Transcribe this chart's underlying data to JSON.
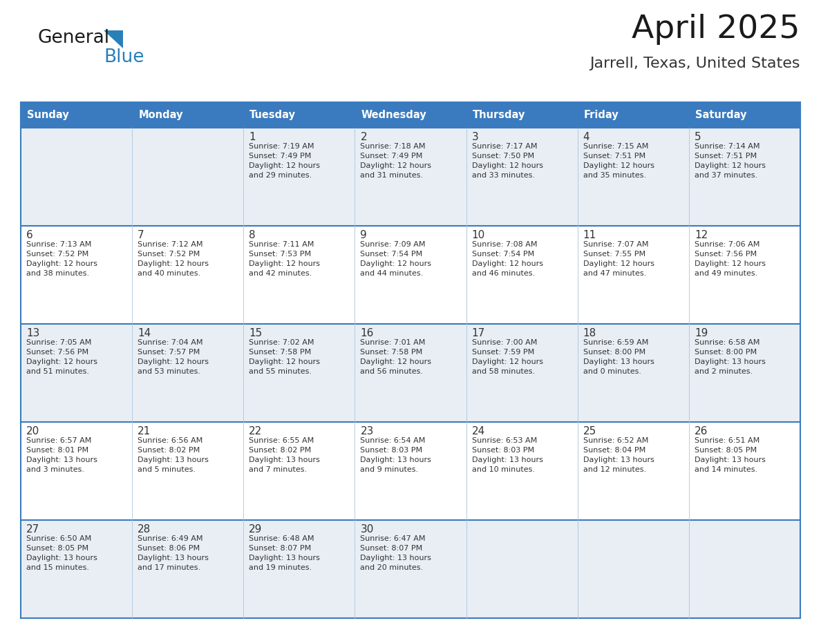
{
  "title": "April 2025",
  "subtitle": "Jarrell, Texas, United States",
  "days_of_week": [
    "Sunday",
    "Monday",
    "Tuesday",
    "Wednesday",
    "Thursday",
    "Friday",
    "Saturday"
  ],
  "header_bg_color": "#3a7bbf",
  "header_text_color": "#ffffff",
  "row_bg_light": "#e8eef4",
  "row_bg_white": "#ffffff",
  "border_color": "#3a7bbf",
  "sep_color": "#aac4de",
  "text_color": "#333333",
  "calendar_data": [
    [
      {
        "day": "",
        "sunrise": "",
        "sunset": "",
        "daylight": ""
      },
      {
        "day": "",
        "sunrise": "",
        "sunset": "",
        "daylight": ""
      },
      {
        "day": "1",
        "sunrise": "Sunrise: 7:19 AM",
        "sunset": "Sunset: 7:49 PM",
        "daylight": "Daylight: 12 hours\nand 29 minutes."
      },
      {
        "day": "2",
        "sunrise": "Sunrise: 7:18 AM",
        "sunset": "Sunset: 7:49 PM",
        "daylight": "Daylight: 12 hours\nand 31 minutes."
      },
      {
        "day": "3",
        "sunrise": "Sunrise: 7:17 AM",
        "sunset": "Sunset: 7:50 PM",
        "daylight": "Daylight: 12 hours\nand 33 minutes."
      },
      {
        "day": "4",
        "sunrise": "Sunrise: 7:15 AM",
        "sunset": "Sunset: 7:51 PM",
        "daylight": "Daylight: 12 hours\nand 35 minutes."
      },
      {
        "day": "5",
        "sunrise": "Sunrise: 7:14 AM",
        "sunset": "Sunset: 7:51 PM",
        "daylight": "Daylight: 12 hours\nand 37 minutes."
      }
    ],
    [
      {
        "day": "6",
        "sunrise": "Sunrise: 7:13 AM",
        "sunset": "Sunset: 7:52 PM",
        "daylight": "Daylight: 12 hours\nand 38 minutes."
      },
      {
        "day": "7",
        "sunrise": "Sunrise: 7:12 AM",
        "sunset": "Sunset: 7:52 PM",
        "daylight": "Daylight: 12 hours\nand 40 minutes."
      },
      {
        "day": "8",
        "sunrise": "Sunrise: 7:11 AM",
        "sunset": "Sunset: 7:53 PM",
        "daylight": "Daylight: 12 hours\nand 42 minutes."
      },
      {
        "day": "9",
        "sunrise": "Sunrise: 7:09 AM",
        "sunset": "Sunset: 7:54 PM",
        "daylight": "Daylight: 12 hours\nand 44 minutes."
      },
      {
        "day": "10",
        "sunrise": "Sunrise: 7:08 AM",
        "sunset": "Sunset: 7:54 PM",
        "daylight": "Daylight: 12 hours\nand 46 minutes."
      },
      {
        "day": "11",
        "sunrise": "Sunrise: 7:07 AM",
        "sunset": "Sunset: 7:55 PM",
        "daylight": "Daylight: 12 hours\nand 47 minutes."
      },
      {
        "day": "12",
        "sunrise": "Sunrise: 7:06 AM",
        "sunset": "Sunset: 7:56 PM",
        "daylight": "Daylight: 12 hours\nand 49 minutes."
      }
    ],
    [
      {
        "day": "13",
        "sunrise": "Sunrise: 7:05 AM",
        "sunset": "Sunset: 7:56 PM",
        "daylight": "Daylight: 12 hours\nand 51 minutes."
      },
      {
        "day": "14",
        "sunrise": "Sunrise: 7:04 AM",
        "sunset": "Sunset: 7:57 PM",
        "daylight": "Daylight: 12 hours\nand 53 minutes."
      },
      {
        "day": "15",
        "sunrise": "Sunrise: 7:02 AM",
        "sunset": "Sunset: 7:58 PM",
        "daylight": "Daylight: 12 hours\nand 55 minutes."
      },
      {
        "day": "16",
        "sunrise": "Sunrise: 7:01 AM",
        "sunset": "Sunset: 7:58 PM",
        "daylight": "Daylight: 12 hours\nand 56 minutes."
      },
      {
        "day": "17",
        "sunrise": "Sunrise: 7:00 AM",
        "sunset": "Sunset: 7:59 PM",
        "daylight": "Daylight: 12 hours\nand 58 minutes."
      },
      {
        "day": "18",
        "sunrise": "Sunrise: 6:59 AM",
        "sunset": "Sunset: 8:00 PM",
        "daylight": "Daylight: 13 hours\nand 0 minutes."
      },
      {
        "day": "19",
        "sunrise": "Sunrise: 6:58 AM",
        "sunset": "Sunset: 8:00 PM",
        "daylight": "Daylight: 13 hours\nand 2 minutes."
      }
    ],
    [
      {
        "day": "20",
        "sunrise": "Sunrise: 6:57 AM",
        "sunset": "Sunset: 8:01 PM",
        "daylight": "Daylight: 13 hours\nand 3 minutes."
      },
      {
        "day": "21",
        "sunrise": "Sunrise: 6:56 AM",
        "sunset": "Sunset: 8:02 PM",
        "daylight": "Daylight: 13 hours\nand 5 minutes."
      },
      {
        "day": "22",
        "sunrise": "Sunrise: 6:55 AM",
        "sunset": "Sunset: 8:02 PM",
        "daylight": "Daylight: 13 hours\nand 7 minutes."
      },
      {
        "day": "23",
        "sunrise": "Sunrise: 6:54 AM",
        "sunset": "Sunset: 8:03 PM",
        "daylight": "Daylight: 13 hours\nand 9 minutes."
      },
      {
        "day": "24",
        "sunrise": "Sunrise: 6:53 AM",
        "sunset": "Sunset: 8:03 PM",
        "daylight": "Daylight: 13 hours\nand 10 minutes."
      },
      {
        "day": "25",
        "sunrise": "Sunrise: 6:52 AM",
        "sunset": "Sunset: 8:04 PM",
        "daylight": "Daylight: 13 hours\nand 12 minutes."
      },
      {
        "day": "26",
        "sunrise": "Sunrise: 6:51 AM",
        "sunset": "Sunset: 8:05 PM",
        "daylight": "Daylight: 13 hours\nand 14 minutes."
      }
    ],
    [
      {
        "day": "27",
        "sunrise": "Sunrise: 6:50 AM",
        "sunset": "Sunset: 8:05 PM",
        "daylight": "Daylight: 13 hours\nand 15 minutes."
      },
      {
        "day": "28",
        "sunrise": "Sunrise: 6:49 AM",
        "sunset": "Sunset: 8:06 PM",
        "daylight": "Daylight: 13 hours\nand 17 minutes."
      },
      {
        "day": "29",
        "sunrise": "Sunrise: 6:48 AM",
        "sunset": "Sunset: 8:07 PM",
        "daylight": "Daylight: 13 hours\nand 19 minutes."
      },
      {
        "day": "30",
        "sunrise": "Sunrise: 6:47 AM",
        "sunset": "Sunset: 8:07 PM",
        "daylight": "Daylight: 13 hours\nand 20 minutes."
      },
      {
        "day": "",
        "sunrise": "",
        "sunset": "",
        "daylight": ""
      },
      {
        "day": "",
        "sunrise": "",
        "sunset": "",
        "daylight": ""
      },
      {
        "day": "",
        "sunrise": "",
        "sunset": "",
        "daylight": ""
      }
    ]
  ],
  "logo_color_general": "#1a1a1a",
  "logo_color_blue": "#2980b9",
  "logo_triangle_color": "#2980b9",
  "title_color": "#1a1a1a",
  "subtitle_color": "#333333"
}
